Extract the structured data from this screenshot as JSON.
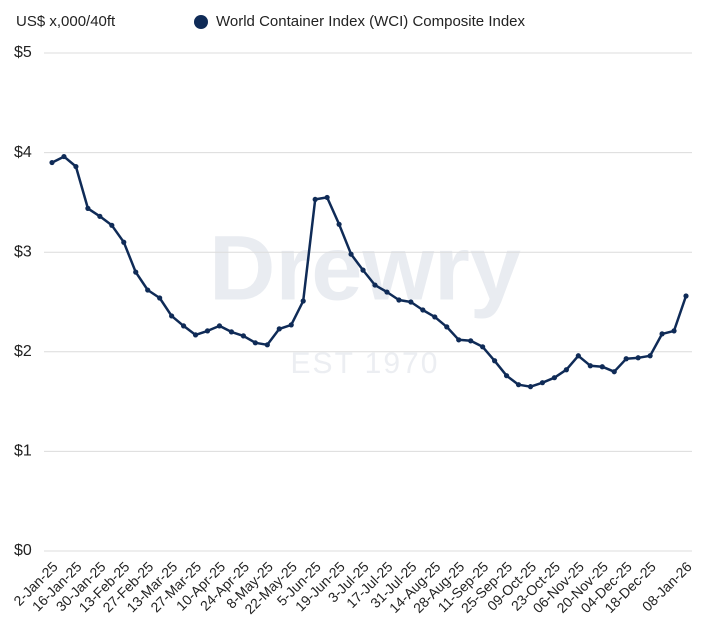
{
  "chart_data": {
    "type": "line",
    "y_label": "US$ x,000/40ft",
    "watermark": "Drewry",
    "watermark_sub": "EST 1970",
    "categories": [
      "2-Jan-25",
      null,
      "16-Jan-25",
      null,
      "30-Jan-25",
      null,
      "13-Feb-25",
      null,
      "27-Feb-25",
      null,
      "13-Mar-25",
      null,
      "27-Mar-25",
      null,
      "10-Apr-25",
      null,
      "24-Apr-25",
      null,
      "8-May-25",
      null,
      "22-May-25",
      null,
      "5-Jun-25",
      null,
      "19-Jun-25",
      null,
      "3-Jul-25",
      null,
      "17-Jul-25",
      null,
      "31-Jul-25",
      null,
      "14-Aug-25",
      null,
      "28-Aug-25",
      null,
      "11-Sep-25",
      null,
      "25-Sep-25",
      null,
      "09-Oct-25",
      null,
      "23-Oct-25",
      null,
      "06-Nov-25",
      null,
      "20-Nov-25",
      null,
      "04-Dec-25",
      null,
      "18-Dec-25",
      null,
      null,
      "08-Jan-26"
    ],
    "series": [
      {
        "name": "World Container Index (WCI) Composite Index",
        "color": "#0f2b57",
        "values": [
          3.9,
          3.96,
          3.86,
          3.44,
          3.36,
          3.27,
          3.1,
          2.8,
          2.62,
          2.54,
          2.36,
          2.26,
          2.17,
          2.21,
          2.26,
          2.2,
          2.16,
          2.09,
          2.07,
          2.23,
          2.27,
          2.51,
          3.53,
          3.55,
          3.28,
          2.98,
          2.82,
          2.67,
          2.6,
          2.52,
          2.5,
          2.42,
          2.35,
          2.25,
          2.12,
          2.11,
          2.05,
          1.91,
          1.76,
          1.67,
          1.65,
          1.69,
          1.74,
          1.82,
          1.96,
          1.86,
          1.85,
          1.8,
          1.93,
          1.94,
          1.96,
          2.18,
          2.21,
          2.56
        ]
      }
    ],
    "ylim": [
      0,
      5
    ],
    "yticks": [
      {
        "value": 0,
        "label": "$0"
      },
      {
        "value": 1,
        "label": "$1"
      },
      {
        "value": 2,
        "label": "$2"
      },
      {
        "value": 3,
        "label": "$3"
      },
      {
        "value": 4,
        "label": "$4"
      },
      {
        "value": 5,
        "label": "$5"
      }
    ],
    "grid": true,
    "legend": "top"
  }
}
